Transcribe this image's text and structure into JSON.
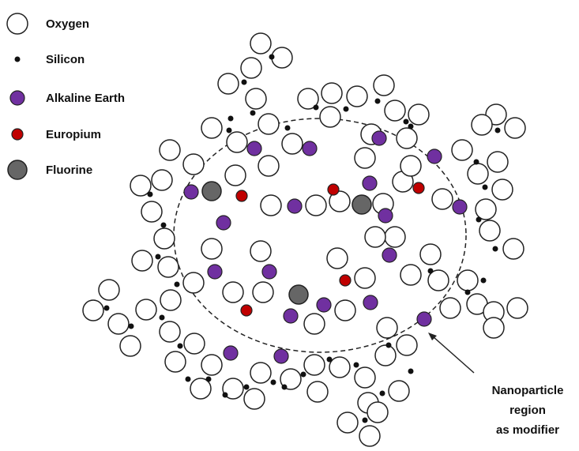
{
  "legend": {
    "items": [
      "Oxygen",
      "Silicon",
      "Alkaline Earth",
      "Europium",
      "Fluorine"
    ]
  },
  "annotation": {
    "lines": [
      "Nanoparticle",
      "region",
      "as modifier"
    ]
  }
}
